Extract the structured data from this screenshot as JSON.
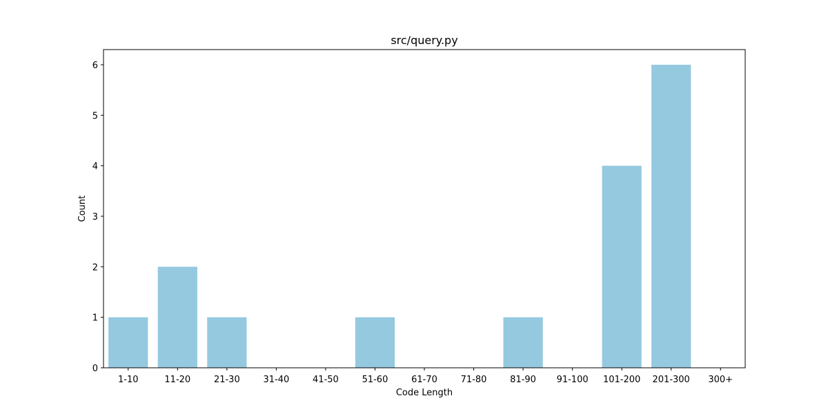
{
  "chart_data": {
    "type": "bar",
    "title": "src/query.py",
    "xlabel": "Code Length",
    "ylabel": "Count",
    "categories": [
      "1-10",
      "11-20",
      "21-30",
      "31-40",
      "41-50",
      "51-60",
      "61-70",
      "71-80",
      "81-90",
      "91-100",
      "101-200",
      "201-300",
      "300+"
    ],
    "values": [
      1,
      2,
      1,
      0,
      0,
      1,
      0,
      0,
      1,
      0,
      4,
      6,
      0
    ],
    "ylim": [
      0,
      6.3
    ],
    "yticks": [
      0,
      1,
      2,
      3,
      4,
      5,
      6
    ],
    "bar_color": "#95c9df",
    "grid": false,
    "legend": "none"
  }
}
